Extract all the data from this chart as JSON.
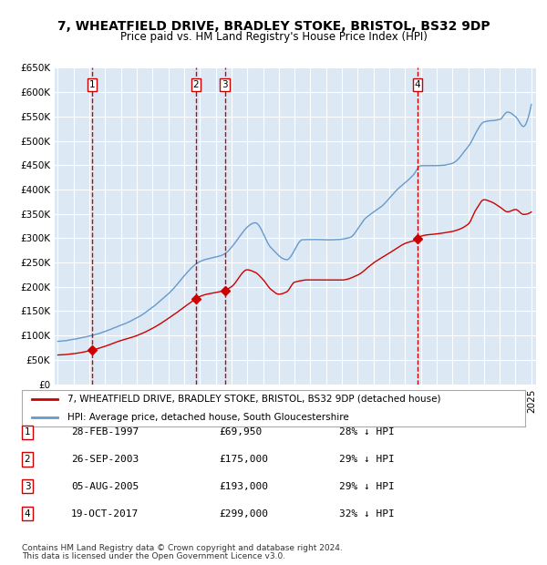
{
  "title": "7, WHEATFIELD DRIVE, BRADLEY STOKE, BRISTOL, BS32 9DP",
  "subtitle": "Price paid vs. HM Land Registry's House Price Index (HPI)",
  "title_fontsize": 11,
  "subtitle_fontsize": 9.5,
  "bg_color": "#dce9f5",
  "plot_bg_color": "#dce9f5",
  "grid_color": "#ffffff",
  "line_color_hpi": "#6699cc",
  "line_color_price": "#cc0000",
  "ylim": [
    0,
    650000
  ],
  "yticks": [
    0,
    50000,
    100000,
    150000,
    200000,
    250000,
    300000,
    350000,
    400000,
    450000,
    500000,
    550000,
    600000,
    650000
  ],
  "ytick_labels": [
    "£0",
    "£50K",
    "£100K",
    "£150K",
    "£200K",
    "£250K",
    "£300K",
    "£350K",
    "£400K",
    "£450K",
    "£500K",
    "£550K",
    "£600K",
    "£650K"
  ],
  "transactions": [
    {
      "num": 1,
      "date": "1997-02-28",
      "price": 69950,
      "pct": "28%"
    },
    {
      "num": 2,
      "date": "2003-09-26",
      "price": 175000,
      "pct": "29%"
    },
    {
      "num": 3,
      "date": "2005-08-05",
      "price": 193000,
      "pct": "29%"
    },
    {
      "num": 4,
      "date": "2017-10-19",
      "price": 299000,
      "pct": "32%"
    }
  ],
  "legend_line1": "7, WHEATFIELD DRIVE, BRADLEY STOKE, BRISTOL, BS32 9DP (detached house)",
  "legend_line2": "HPI: Average price, detached house, South Gloucestershire",
  "footer1": "Contains HM Land Registry data © Crown copyright and database right 2024.",
  "footer2": "This data is licensed under the Open Government Licence v3.0.",
  "table_rows": [
    {
      "num": 1,
      "date": "28-FEB-1997",
      "price": "£69,950",
      "pct": "28% ↓ HPI"
    },
    {
      "num": 2,
      "date": "26-SEP-2003",
      "price": "£175,000",
      "pct": "29% ↓ HPI"
    },
    {
      "num": 3,
      "date": "05-AUG-2005",
      "price": "£193,000",
      "pct": "29% ↓ HPI"
    },
    {
      "num": 4,
      "date": "19-OCT-2017",
      "price": "£299,000",
      "pct": "32% ↓ HPI"
    }
  ]
}
